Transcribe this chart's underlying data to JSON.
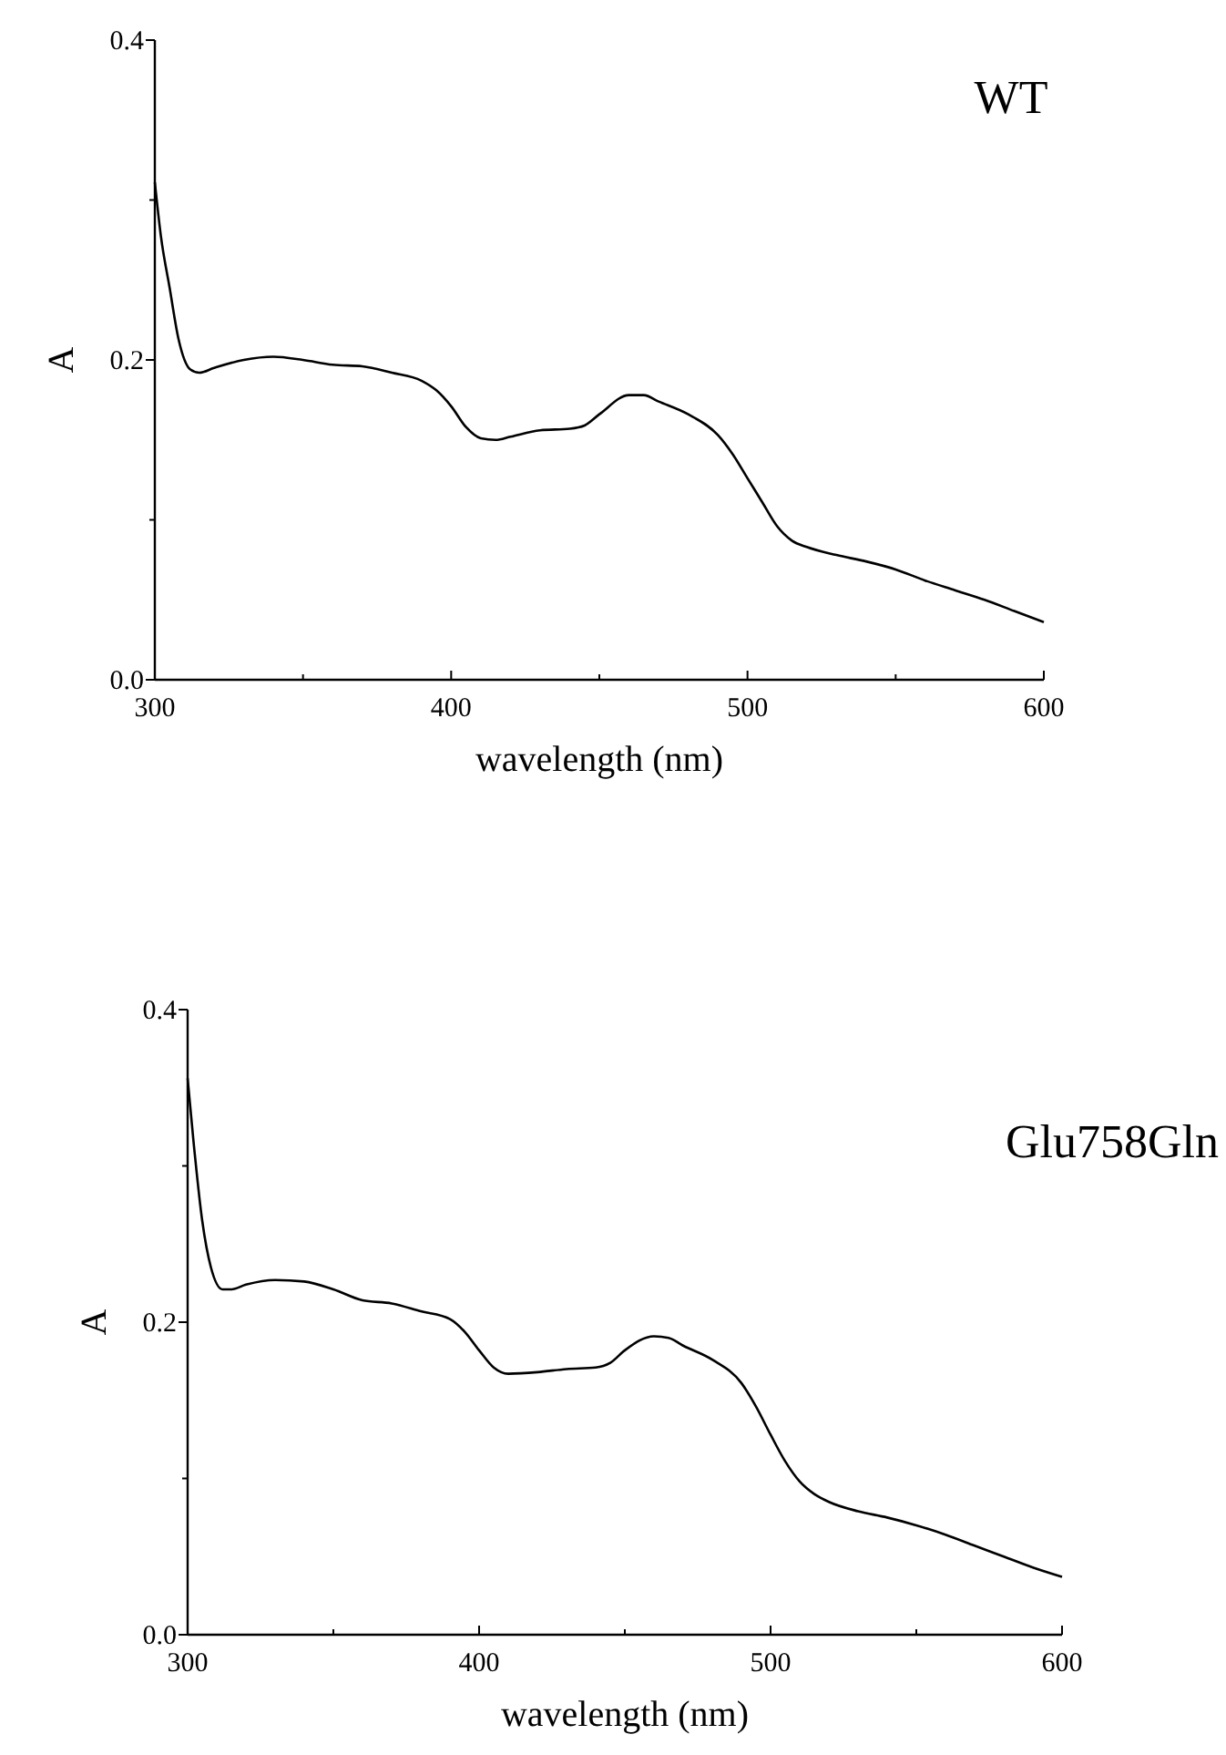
{
  "chart_data": [
    {
      "type": "line",
      "xlabel": "wavelength (nm)",
      "ylabel": "A",
      "annotations": [
        "WT"
      ],
      "xlim": [
        300,
        600
      ],
      "ylim": [
        0,
        0.4
      ],
      "xticks": [
        {
          "value": 300,
          "label": "300"
        },
        {
          "value": 350,
          "label": null
        },
        {
          "value": 400,
          "label": "400"
        },
        {
          "value": 450,
          "label": null
        },
        {
          "value": 500,
          "label": "500"
        },
        {
          "value": 550,
          "label": null
        },
        {
          "value": 600,
          "label": "600"
        }
      ],
      "yticks": [
        {
          "value": 0,
          "label": "0.0"
        },
        {
          "value": 0.1,
          "label": null
        },
        {
          "value": 0.2,
          "label": "0.2"
        },
        {
          "value": 0.3,
          "label": null
        },
        {
          "value": 0.4,
          "label": "0.4"
        }
      ],
      "x": [
        300,
        302,
        305,
        308,
        312,
        315,
        320,
        330,
        340,
        350,
        360,
        370,
        380,
        390,
        395,
        400,
        405,
        410,
        415,
        420,
        430,
        440,
        445,
        450,
        460,
        465,
        470,
        480,
        490,
        495,
        500,
        505,
        510,
        515,
        520,
        530,
        540,
        550,
        560,
        570,
        580,
        590,
        600
      ],
      "series": [
        {
          "color": "#000000",
          "values": [
            0.311,
            0.278,
            0.245,
            0.213,
            0.194,
            0.192,
            0.195,
            0.2,
            0.202,
            0.2,
            0.197,
            0.196,
            0.192,
            0.187,
            0.181,
            0.171,
            0.158,
            0.151,
            0.15,
            0.152,
            0.156,
            0.157,
            0.159,
            0.166,
            0.178,
            0.178,
            0.174,
            0.166,
            0.153,
            0.141,
            0.126,
            0.111,
            0.096,
            0.087,
            0.083,
            0.078,
            0.074,
            0.069,
            0.062,
            0.056,
            0.05,
            0.043,
            0.036
          ]
        }
      ]
    },
    {
      "type": "line",
      "xlabel": "wavelength (nm)",
      "ylabel": "A",
      "annotations": [
        "Glu758Gln"
      ],
      "xlim": [
        300,
        600
      ],
      "ylim": [
        0,
        0.4
      ],
      "xticks": [
        {
          "value": 300,
          "label": "300"
        },
        {
          "value": 350,
          "label": null
        },
        {
          "value": 400,
          "label": "400"
        },
        {
          "value": 450,
          "label": null
        },
        {
          "value": 500,
          "label": "500"
        },
        {
          "value": 550,
          "label": null
        },
        {
          "value": 600,
          "label": "600"
        }
      ],
      "yticks": [
        {
          "value": 0,
          "label": "0.0"
        },
        {
          "value": 0.1,
          "label": null
        },
        {
          "value": 0.2,
          "label": "0.2"
        },
        {
          "value": 0.3,
          "label": null
        },
        {
          "value": 0.4,
          "label": "0.4"
        }
      ],
      "x": [
        300,
        302,
        305,
        308,
        312,
        315,
        320,
        330,
        340,
        350,
        360,
        370,
        380,
        390,
        395,
        400,
        405,
        410,
        420,
        430,
        440,
        445,
        450,
        460,
        465,
        470,
        480,
        490,
        495,
        500,
        505,
        510,
        515,
        520,
        530,
        540,
        550,
        560,
        570,
        580,
        590,
        600
      ],
      "series": [
        {
          "color": "#000000",
          "values": [
            0.356,
            0.316,
            0.265,
            0.235,
            0.221,
            0.221,
            0.224,
            0.227,
            0.226,
            0.221,
            0.214,
            0.212,
            0.207,
            0.202,
            0.194,
            0.182,
            0.171,
            0.167,
            0.168,
            0.17,
            0.171,
            0.174,
            0.182,
            0.191,
            0.19,
            0.185,
            0.176,
            0.161,
            0.146,
            0.128,
            0.111,
            0.098,
            0.09,
            0.085,
            0.079,
            0.075,
            0.07,
            0.064,
            0.057,
            0.05,
            0.043,
            0.037
          ]
        }
      ]
    }
  ]
}
